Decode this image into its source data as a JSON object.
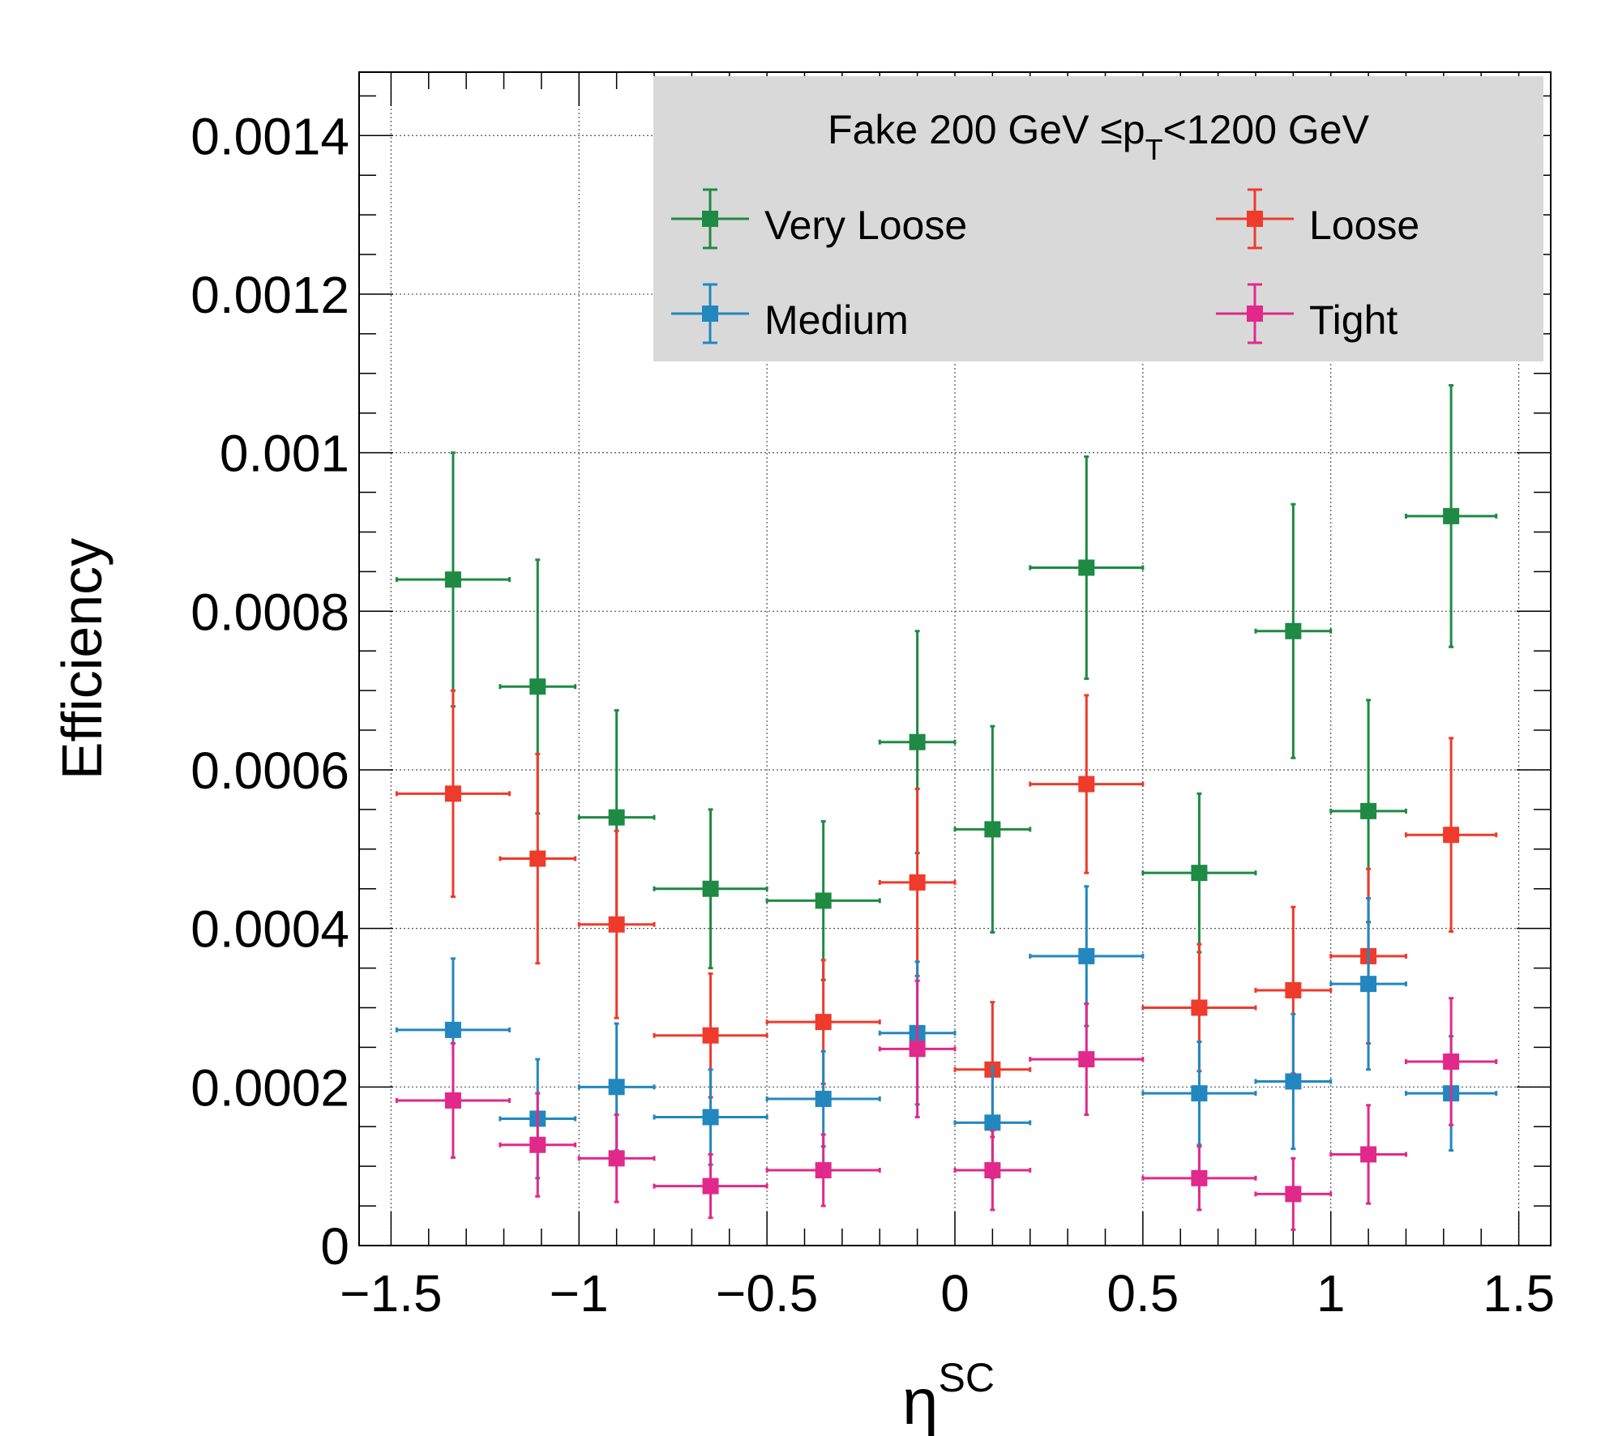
{
  "chart_data": {
    "type": "scatter",
    "title": "",
    "xlabel": "η",
    "xlabel_superscript": "SC",
    "ylabel": "Efficiency",
    "xlim": [
      -1.585,
      1.585
    ],
    "ylim": [
      0,
      0.00148
    ],
    "grid": true,
    "x_ticks": [
      -1.5,
      -1,
      -0.5,
      0,
      0.5,
      1,
      1.5
    ],
    "x_tick_labels": [
      "−1.5",
      "−1",
      "−0.5",
      "0",
      "0.5",
      "1",
      "1.5"
    ],
    "y_ticks": [
      0,
      0.0002,
      0.0004,
      0.0006,
      0.0008,
      0.001,
      0.0012,
      0.0014
    ],
    "y_tick_labels": [
      "0",
      "0.0002",
      "0.0004",
      "0.0006",
      "0.0008",
      "0.001",
      "0.0012",
      "0.0014"
    ],
    "legend": {
      "placement": "top-right",
      "title_pre": "Fake  200 GeV  ≤p",
      "title_sub": "T",
      "title_post": "<1200 GeV"
    },
    "series": [
      {
        "name": "Very Loose",
        "color": "#1e8a43",
        "points": [
          {
            "x": -1.335,
            "xerr": 0.15,
            "y": 0.00084,
            "yerr": 0.00016
          },
          {
            "x": -1.11,
            "xerr": 0.1,
            "y": 0.000705,
            "yerr": 0.00016
          },
          {
            "x": -0.9,
            "xerr": 0.1,
            "y": 0.00054,
            "yerr": 0.000135
          },
          {
            "x": -0.65,
            "xerr": 0.15,
            "y": 0.00045,
            "yerr": 0.0001
          },
          {
            "x": -0.35,
            "xerr": 0.15,
            "y": 0.000435,
            "yerr": 0.0001
          },
          {
            "x": -0.1,
            "xerr": 0.1,
            "y": 0.000635,
            "yerr": 0.00014
          },
          {
            "x": 0.1,
            "xerr": 0.1,
            "y": 0.000525,
            "yerr": 0.00013
          },
          {
            "x": 0.35,
            "xerr": 0.15,
            "y": 0.000855,
            "yerr": 0.00014
          },
          {
            "x": 0.65,
            "xerr": 0.15,
            "y": 0.00047,
            "yerr": 0.0001
          },
          {
            "x": 0.9,
            "xerr": 0.1,
            "y": 0.000775,
            "yerr": 0.00016
          },
          {
            "x": 1.1,
            "xerr": 0.1,
            "y": 0.000548,
            "yerr": 0.00014
          },
          {
            "x": 1.32,
            "xerr": 0.12,
            "y": 0.00092,
            "yerr": 0.000165
          }
        ]
      },
      {
        "name": "Loose",
        "color": "#ee3b2c",
        "points": [
          {
            "x": -1.335,
            "xerr": 0.15,
            "y": 0.00057,
            "yerr": 0.00013
          },
          {
            "x": -1.11,
            "xerr": 0.1,
            "y": 0.000488,
            "yerr": 0.000132
          },
          {
            "x": -0.9,
            "xerr": 0.1,
            "y": 0.000405,
            "yerr": 0.000118
          },
          {
            "x": -0.65,
            "xerr": 0.15,
            "y": 0.000265,
            "yerr": 7.8e-05
          },
          {
            "x": -0.35,
            "xerr": 0.15,
            "y": 0.000282,
            "yerr": 7.8e-05
          },
          {
            "x": -0.1,
            "xerr": 0.1,
            "y": 0.000458,
            "yerr": 0.000118
          },
          {
            "x": 0.1,
            "xerr": 0.1,
            "y": 0.000222,
            "yerr": 8.5e-05
          },
          {
            "x": 0.35,
            "xerr": 0.15,
            "y": 0.000582,
            "yerr": 0.000112
          },
          {
            "x": 0.65,
            "xerr": 0.15,
            "y": 0.0003,
            "yerr": 8e-05
          },
          {
            "x": 0.9,
            "xerr": 0.1,
            "y": 0.000322,
            "yerr": 0.000105
          },
          {
            "x": 1.1,
            "xerr": 0.1,
            "y": 0.000365,
            "yerr": 0.00011
          },
          {
            "x": 1.32,
            "xerr": 0.12,
            "y": 0.000518,
            "yerr": 0.000122
          }
        ]
      },
      {
        "name": "Medium",
        "color": "#2287bf",
        "points": [
          {
            "x": -1.335,
            "xerr": 0.15,
            "y": 0.000272,
            "yerr": 9e-05
          },
          {
            "x": -1.11,
            "xerr": 0.1,
            "y": 0.00016,
            "yerr": 7.5e-05
          },
          {
            "x": -0.9,
            "xerr": 0.1,
            "y": 0.0002,
            "yerr": 8e-05
          },
          {
            "x": -0.65,
            "xerr": 0.15,
            "y": 0.000162,
            "yerr": 6e-05
          },
          {
            "x": -0.35,
            "xerr": 0.15,
            "y": 0.000185,
            "yerr": 6e-05
          },
          {
            "x": -0.1,
            "xerr": 0.1,
            "y": 0.000268,
            "yerr": 9e-05
          },
          {
            "x": 0.1,
            "xerr": 0.1,
            "y": 0.000155,
            "yerr": 7e-05
          },
          {
            "x": 0.35,
            "xerr": 0.15,
            "y": 0.000365,
            "yerr": 8.8e-05
          },
          {
            "x": 0.65,
            "xerr": 0.15,
            "y": 0.000192,
            "yerr": 6.5e-05
          },
          {
            "x": 0.9,
            "xerr": 0.1,
            "y": 0.000207,
            "yerr": 8.5e-05
          },
          {
            "x": 1.1,
            "xerr": 0.1,
            "y": 0.00033,
            "yerr": 0.000108
          },
          {
            "x": 1.32,
            "xerr": 0.12,
            "y": 0.000192,
            "yerr": 7.2e-05
          }
        ]
      },
      {
        "name": "Tight",
        "color": "#e1298b",
        "points": [
          {
            "x": -1.335,
            "xerr": 0.15,
            "y": 0.000183,
            "yerr": 7.2e-05
          },
          {
            "x": -1.11,
            "xerr": 0.1,
            "y": 0.000127,
            "yerr": 6.5e-05
          },
          {
            "x": -0.9,
            "xerr": 0.1,
            "y": 0.00011,
            "yerr": 5.5e-05
          },
          {
            "x": -0.65,
            "xerr": 0.15,
            "y": 7.5e-05,
            "yerr": 4e-05
          },
          {
            "x": -0.35,
            "xerr": 0.15,
            "y": 9.5e-05,
            "yerr": 4.5e-05
          },
          {
            "x": -0.1,
            "xerr": 0.1,
            "y": 0.000248,
            "yerr": 8.6e-05
          },
          {
            "x": 0.1,
            "xerr": 0.1,
            "y": 9.5e-05,
            "yerr": 5e-05
          },
          {
            "x": 0.35,
            "xerr": 0.15,
            "y": 0.000235,
            "yerr": 7e-05
          },
          {
            "x": 0.65,
            "xerr": 0.15,
            "y": 8.5e-05,
            "yerr": 4e-05
          },
          {
            "x": 0.9,
            "xerr": 0.1,
            "y": 6.5e-05,
            "yerr": 4.5e-05
          },
          {
            "x": 1.1,
            "xerr": 0.1,
            "y": 0.000115,
            "yerr": 6.2e-05
          },
          {
            "x": 1.32,
            "xerr": 0.12,
            "y": 0.000232,
            "yerr": 8e-05
          }
        ]
      }
    ]
  }
}
